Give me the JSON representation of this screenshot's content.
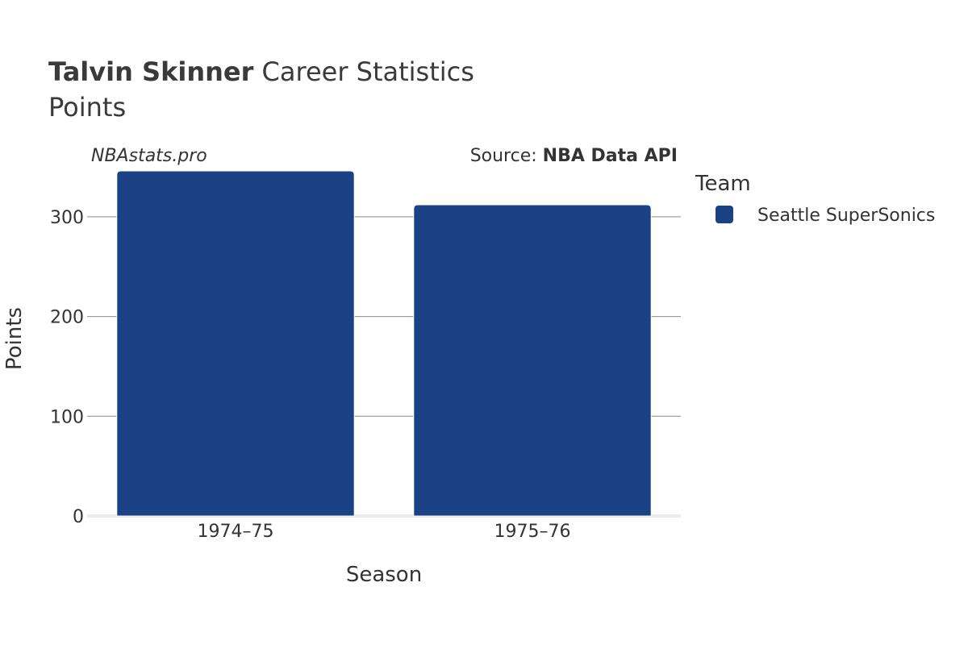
{
  "header": {
    "title_bold": "Talvin Skinner",
    "title_rest": " Career Statistics",
    "subtitle": "Points"
  },
  "annotations": {
    "brand": "NBAstats.pro",
    "source_prefix": "Source: ",
    "source_bold": "NBA Data API"
  },
  "legend": {
    "title": "Team",
    "items": [
      {
        "label": "Seattle SuperSonics",
        "color": "#1c4286"
      }
    ]
  },
  "chart_data": {
    "type": "bar",
    "categories": [
      "1974–75",
      "1975–76"
    ],
    "series": [
      {
        "name": "Seattle SuperSonics",
        "values": [
          346,
          312
        ],
        "color": "#1c4286"
      }
    ],
    "xlabel": "Season",
    "ylabel": "Points",
    "ylim": [
      0,
      350
    ],
    "yticks": [
      0,
      100,
      200,
      300
    ],
    "grid": true,
    "legend_position": "right"
  }
}
